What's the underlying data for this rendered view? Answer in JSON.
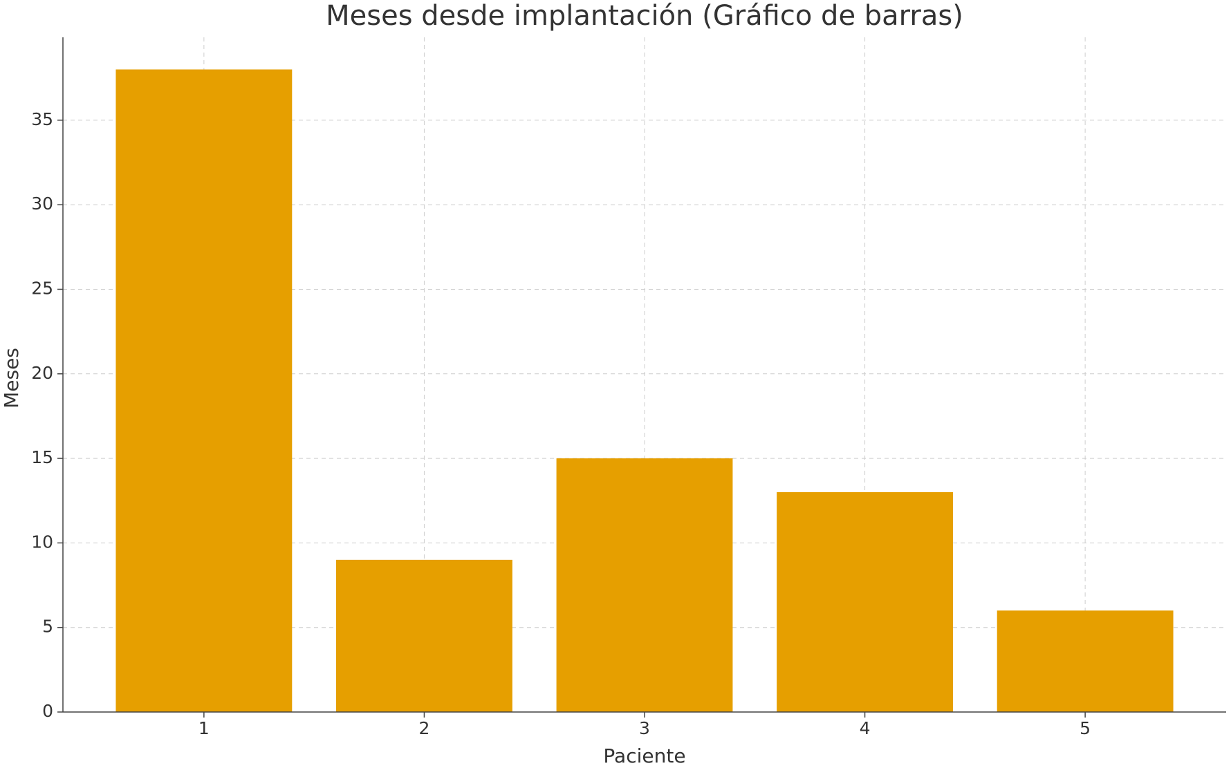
{
  "chart_data": {
    "type": "bar",
    "title": "Meses desde implantación (Gráfico de barras)",
    "x_label": "Paciente",
    "y_label": "Meses",
    "x": [
      1,
      2,
      3,
      4,
      5
    ],
    "values": [
      38,
      9,
      15,
      13,
      6
    ],
    "color": "#e69f00",
    "xlim": [
      0.36,
      5.64
    ],
    "xticks": [
      1,
      2,
      3,
      4,
      5
    ],
    "ylim": [
      0,
      39.9
    ],
    "yticks": [
      0,
      5,
      10,
      15,
      20,
      25,
      30,
      35
    ],
    "grid": true
  }
}
